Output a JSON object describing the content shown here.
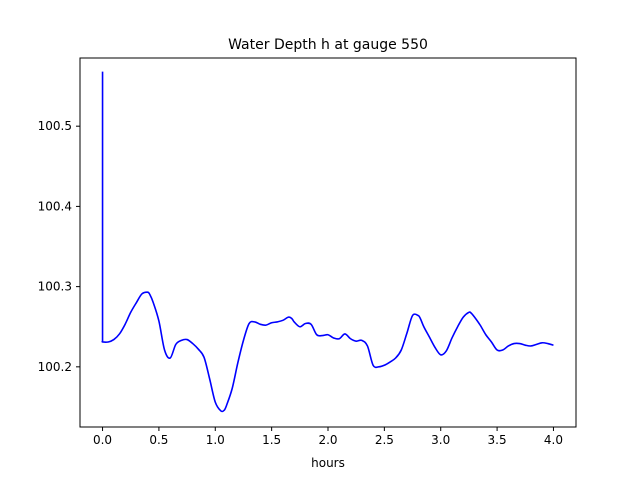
{
  "chart_data": {
    "type": "line",
    "title": "Water Depth h at gauge 550",
    "xlabel": "hours",
    "ylabel": "",
    "xlim": [
      -0.2,
      4.2
    ],
    "ylim": [
      100.125,
      100.585
    ],
    "xticks": [
      0.0,
      0.5,
      1.0,
      1.5,
      2.0,
      2.5,
      3.0,
      3.5,
      4.0
    ],
    "xtick_labels": [
      "0.0",
      "0.5",
      "1.0",
      "1.5",
      "2.0",
      "2.5",
      "3.0",
      "3.5",
      "4.0"
    ],
    "yticks": [
      100.2,
      100.3,
      100.4,
      100.5
    ],
    "ytick_labels": [
      "100.2",
      "100.3",
      "100.4",
      "100.5"
    ],
    "grid": false,
    "series": [
      {
        "color": "#0000ff",
        "x": [
          0.0,
          0.0,
          0.001,
          0.05,
          0.1,
          0.15,
          0.2,
          0.25,
          0.3,
          0.35,
          0.4,
          0.42,
          0.45,
          0.5,
          0.55,
          0.6,
          0.65,
          0.7,
          0.75,
          0.8,
          0.85,
          0.9,
          0.95,
          1.0,
          1.05,
          1.08,
          1.1,
          1.15,
          1.2,
          1.25,
          1.3,
          1.35,
          1.4,
          1.45,
          1.5,
          1.55,
          1.6,
          1.65,
          1.68,
          1.7,
          1.75,
          1.8,
          1.85,
          1.9,
          1.95,
          2.0,
          2.05,
          2.1,
          2.15,
          2.2,
          2.25,
          2.3,
          2.35,
          2.4,
          2.45,
          2.5,
          2.55,
          2.6,
          2.65,
          2.7,
          2.75,
          2.8,
          2.82,
          2.85,
          2.9,
          2.95,
          3.0,
          3.05,
          3.1,
          3.15,
          3.2,
          3.25,
          3.27,
          3.3,
          3.35,
          3.4,
          3.45,
          3.5,
          3.55,
          3.6,
          3.65,
          3.7,
          3.75,
          3.8,
          3.85,
          3.9,
          3.95,
          4.0
        ],
        "y": [
          100.568,
          100.232,
          100.231,
          100.231,
          100.234,
          100.241,
          100.253,
          100.268,
          100.28,
          100.291,
          100.293,
          100.29,
          100.28,
          100.257,
          100.221,
          100.211,
          100.228,
          100.233,
          100.234,
          100.229,
          100.222,
          100.212,
          100.185,
          100.156,
          100.145,
          100.146,
          100.152,
          100.173,
          100.205,
          100.233,
          100.254,
          100.256,
          100.253,
          100.252,
          100.255,
          100.256,
          100.258,
          100.262,
          100.26,
          100.256,
          100.25,
          100.254,
          100.253,
          100.24,
          100.239,
          100.24,
          100.236,
          100.235,
          100.241,
          100.235,
          100.232,
          100.233,
          100.226,
          100.202,
          100.2,
          100.202,
          100.206,
          100.211,
          100.221,
          100.242,
          100.264,
          100.264,
          100.26,
          100.25,
          100.237,
          100.224,
          100.215,
          100.22,
          100.236,
          100.25,
          100.262,
          100.268,
          100.267,
          100.262,
          100.252,
          100.24,
          100.231,
          100.221,
          100.221,
          100.226,
          100.229,
          100.229,
          100.227,
          100.226,
          100.228,
          100.23,
          100.229,
          100.227
        ]
      }
    ]
  }
}
